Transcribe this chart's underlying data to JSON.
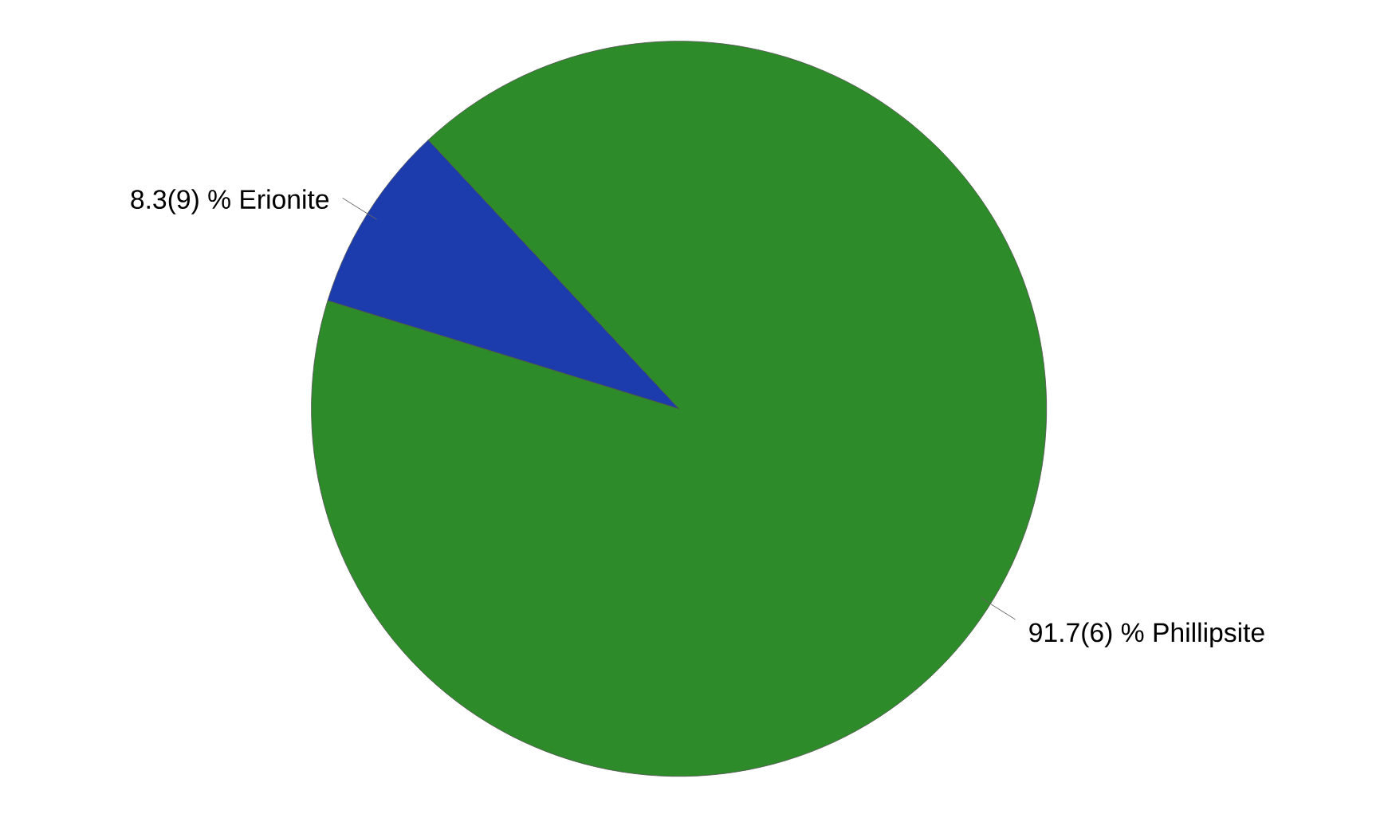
{
  "chart_data": {
    "type": "pie",
    "categories": [
      "Erionite",
      "Phillipsite"
    ],
    "values": [
      8.3,
      91.7
    ],
    "value_labels": [
      "8.3(9) %",
      "91.7(6) %"
    ],
    "colors": [
      "#1c3cae",
      "#2e8b2a"
    ]
  }
}
